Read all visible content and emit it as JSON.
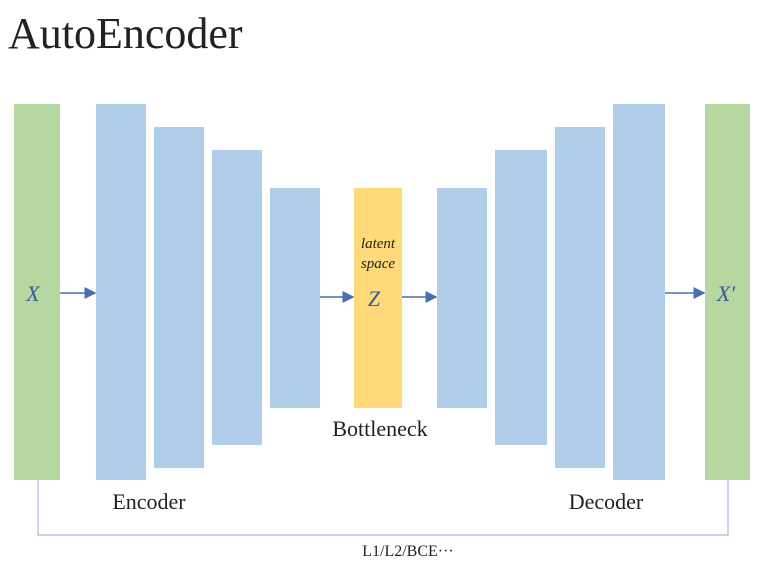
{
  "title": "AutoEncoder",
  "input": {
    "label": "X"
  },
  "latent": {
    "lines": [
      "latent",
      "space"
    ],
    "label": "Z"
  },
  "output": {
    "label": "X′"
  },
  "bottleneck": "Bottleneck",
  "encoder": "Encoder",
  "decoder": "Decoder",
  "loss": "L1/L2/BCE···"
}
